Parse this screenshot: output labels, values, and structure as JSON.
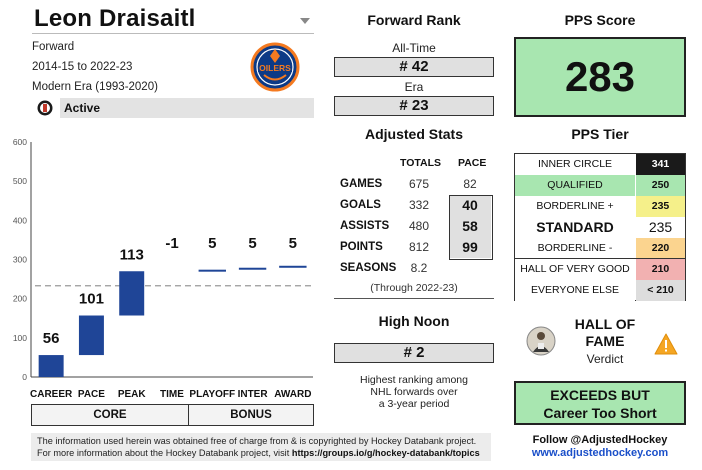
{
  "player": {
    "name": "Leon Draisaitl",
    "position": "Forward",
    "seasons": "2014-15 to 2022-23",
    "era": "Modern Era (1993-2020)",
    "status": "Active"
  },
  "logo": {
    "text": "OILERS"
  },
  "chart": {
    "y_ticks": [
      "600",
      "500",
      "400",
      "300",
      "200",
      "100",
      "0"
    ],
    "categories": [
      "CAREER",
      "PACE",
      "PEAK",
      "TIME",
      "PLAYOFF",
      "INTER",
      "AWARD"
    ],
    "group_labels": {
      "core": "CORE",
      "bonus": "BONUS"
    }
  },
  "chart_data": {
    "type": "bar",
    "subtype": "waterfall",
    "categories": [
      "CAREER",
      "PACE",
      "PEAK",
      "TIME",
      "PLAYOFF",
      "INTER",
      "AWARD"
    ],
    "values": [
      56,
      101,
      113,
      -1,
      5,
      5,
      5
    ],
    "data_labels": [
      "56",
      "101",
      "113",
      "-1",
      "5",
      "5",
      "5"
    ],
    "ylim": [
      0,
      600
    ],
    "y_ticks": [
      0,
      100,
      200,
      300,
      400,
      500,
      600
    ],
    "reference_line": 233,
    "bar_color": "#1f4597",
    "grid": false
  },
  "forward_rank": {
    "title": "Forward Rank",
    "alltime_label": "All-Time",
    "alltime_value": "# 42",
    "era_label": "Era",
    "era_value": "# 23"
  },
  "adjusted_stats": {
    "title": "Adjusted Stats",
    "col_totals": "TOTALS",
    "col_pace": "PACE",
    "rows": [
      {
        "label": "GAMES",
        "total": "675",
        "pace": "82"
      },
      {
        "label": "GOALS",
        "total": "332",
        "pace": "40"
      },
      {
        "label": "ASSISTS",
        "total": "480",
        "pace": "58"
      },
      {
        "label": "POINTS",
        "total": "812",
        "pace": "99"
      },
      {
        "label": "SEASONS",
        "total": "8.2",
        "pace": ""
      }
    ],
    "through_note": "(Through 2022-23)"
  },
  "high_noon": {
    "title": "High Noon",
    "value": "# 2",
    "desc_line1": "Highest ranking among",
    "desc_line2": "NHL forwards over",
    "desc_line3": "a 3-year period"
  },
  "pps": {
    "title": "PPS Score",
    "score": "283",
    "tier_title": "PPS Tier"
  },
  "tiers": [
    {
      "label": "INNER CIRCLE",
      "value": "341",
      "label_bg": "#ffffff",
      "val_bg": "#1a1a1a",
      "val_color": "#ffffff"
    },
    {
      "label": "QUALIFIED",
      "value": "250",
      "label_bg": "#a8e6b0",
      "val_bg": "#a8e6b0",
      "val_color": "#111111"
    },
    {
      "label": "BORDERLINE +",
      "value": "235",
      "label_bg": "#ffffff",
      "val_bg": "#f5f08a",
      "val_color": "#111111"
    },
    {
      "label": "STANDARD",
      "value": "235",
      "label_bg": "#ffffff",
      "val_bg": "#ffffff",
      "val_color": "#111111"
    },
    {
      "label": "BORDERLINE -",
      "value": "220",
      "label_bg": "#ffffff",
      "val_bg": "#fbd48f",
      "val_color": "#111111"
    },
    {
      "label": "HALL OF VERY GOOD",
      "value": "210",
      "label_bg": "#ffffff",
      "val_bg": "#f2b1b1",
      "val_color": "#111111"
    },
    {
      "label": "EVERYONE ELSE",
      "value": "< 210",
      "label_bg": "#ffffff",
      "val_bg": "#dddddd",
      "val_color": "#111111"
    }
  ],
  "hof": {
    "title_line1": "HALL OF",
    "title_line2": "FAME",
    "verdict": "Verdict"
  },
  "exceeds": {
    "line1": "EXCEEDS BUT",
    "line2": "Career Too Short"
  },
  "footer": {
    "line1": "The information used herein was obtained free of charge from & is copyrighted by Hockey Databank project.",
    "line2_prefix": "For more information about the Hockey Databank project, visit ",
    "line2_link": "https://groups.io/g/hockey-databank/topics",
    "follow": "Follow @AdjustedHockey",
    "site": "www.adjustedhockey.com"
  },
  "colors": {
    "accent_green": "#a8e6b0",
    "bar_blue": "#1f4597",
    "oilers_blue": "#0d3a86",
    "oilers_orange": "#f47a20",
    "link_blue": "#1a4fc9",
    "warning_orange": "#f5a623"
  },
  "icons": {
    "dropdown": "chevron-down-icon",
    "hof": "hockey-hall-of-fame-icon",
    "hof_verdict": "hall-of-fame-photo",
    "warning": "warning-icon"
  }
}
